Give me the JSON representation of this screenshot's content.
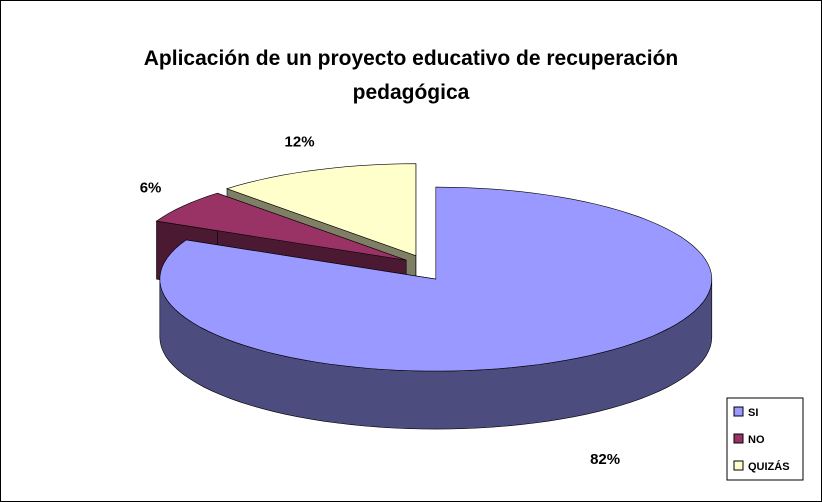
{
  "chart_data": {
    "type": "pie3d",
    "title": "Aplicación de un proyecto educativo de recuperación pedagógica",
    "categories": [
      "SI",
      "NO",
      "QUIZÁS"
    ],
    "values": [
      82,
      6,
      12
    ],
    "value_labels": [
      "82%",
      "6%",
      "12%"
    ],
    "colors": [
      "#9999ff",
      "#993366",
      "#ffffcc"
    ],
    "legend": "bottom-right"
  }
}
